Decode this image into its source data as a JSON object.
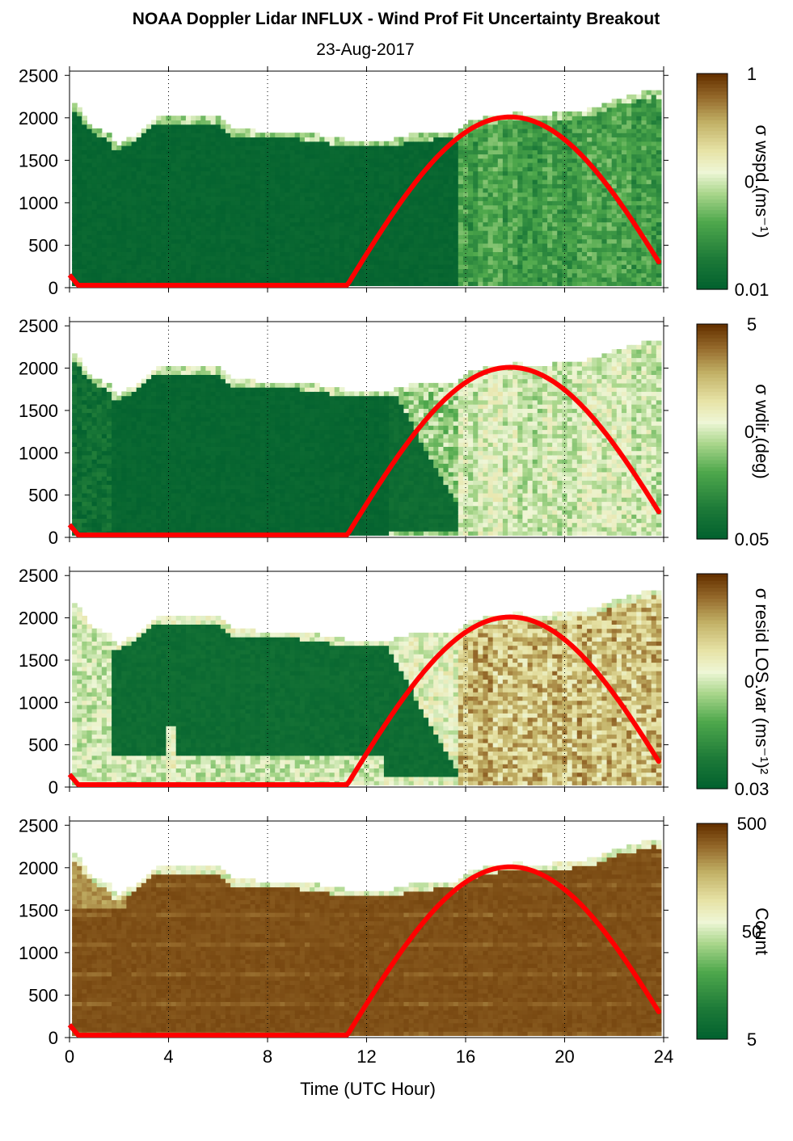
{
  "title": "NOAA Doppler Lidar INFLUX - Wind Prof Fit Uncertainty Breakout",
  "subtitle": "23-Aug-2017",
  "xlabel": "Time (UTC Hour)",
  "chart_data": [
    {
      "type": "heatmap",
      "colorbar_label": "σ wspd (ms⁻¹)",
      "colorbar_ticks": [
        "1",
        "0.",
        "0.01"
      ],
      "x_ticks": [
        "0",
        "4",
        "8",
        "12",
        "16",
        "20",
        "24"
      ],
      "y_ticks": [
        "0",
        "500",
        "1000",
        "1500",
        "2000",
        "2500"
      ],
      "xlim": [
        0,
        24
      ],
      "ylim": [
        0,
        2550
      ],
      "grid": "vertical dotted",
      "regime": "wspd"
    },
    {
      "type": "heatmap",
      "colorbar_label": "σ wdir (deg)",
      "colorbar_ticks": [
        "5",
        "0.",
        "0.05"
      ],
      "x_ticks": [
        "0",
        "4",
        "8",
        "12",
        "16",
        "20",
        "24"
      ],
      "y_ticks": [
        "0",
        "500",
        "1000",
        "1500",
        "2000",
        "2500"
      ],
      "xlim": [
        0,
        24
      ],
      "ylim": [
        0,
        2550
      ],
      "grid": "vertical dotted",
      "regime": "wdir"
    },
    {
      "type": "heatmap",
      "colorbar_label": "σ resid LOS var (ms⁻¹)²",
      "colorbar_ticks": [
        "",
        "0.",
        "0.03"
      ],
      "x_ticks": [
        "0",
        "4",
        "8",
        "12",
        "16",
        "20",
        "24"
      ],
      "y_ticks": [
        "0",
        "500",
        "1000",
        "1500",
        "2000",
        "2500"
      ],
      "xlim": [
        0,
        24
      ],
      "ylim": [
        0,
        2550
      ],
      "grid": "vertical dotted",
      "regime": "resid"
    },
    {
      "type": "heatmap",
      "colorbar_label": "Count",
      "colorbar_ticks": [
        "500",
        "50",
        "5"
      ],
      "x_ticks": [
        "0",
        "4",
        "8",
        "12",
        "16",
        "20",
        "24"
      ],
      "y_ticks": [
        "0",
        "500",
        "1000",
        "1500",
        "2000",
        "2500"
      ],
      "xlim": [
        0,
        24
      ],
      "ylim": [
        0,
        2550
      ],
      "grid": "vertical dotted",
      "regime": "count"
    }
  ],
  "data_top_profile": {
    "t": [
      0,
      0.3,
      0.6,
      1,
      1.5,
      1.8,
      2,
      2.5,
      3,
      3.5,
      4,
      5,
      6,
      6.5,
      7,
      8,
      9,
      10,
      11,
      12,
      13,
      13.5,
      14,
      15,
      15.6,
      16,
      17,
      18,
      19,
      20,
      21,
      22,
      23,
      23.5,
      23.8
    ],
    "h": [
      2150,
      2100,
      1950,
      1850,
      1800,
      1650,
      1700,
      1760,
      1900,
      2000,
      2000,
      2000,
      1980,
      1850,
      1830,
      1820,
      1810,
      1780,
      1720,
      1720,
      1720,
      1760,
      1800,
      1810,
      1800,
      1920,
      2000,
      2030,
      2010,
      2050,
      2080,
      2200,
      2270,
      2310,
      2300
    ]
  },
  "solar_curve": {
    "night_height": 20,
    "sunrise_hour": 11.2,
    "peak_hour": 17.8,
    "peak_height": 2010,
    "end_hour": 23.8,
    "end_height": 320,
    "start_height": 150
  },
  "colors": {
    "dark_green": "#006633",
    "light": "#f4f8dc",
    "brown": "#663300",
    "curve": "#ff0000"
  }
}
